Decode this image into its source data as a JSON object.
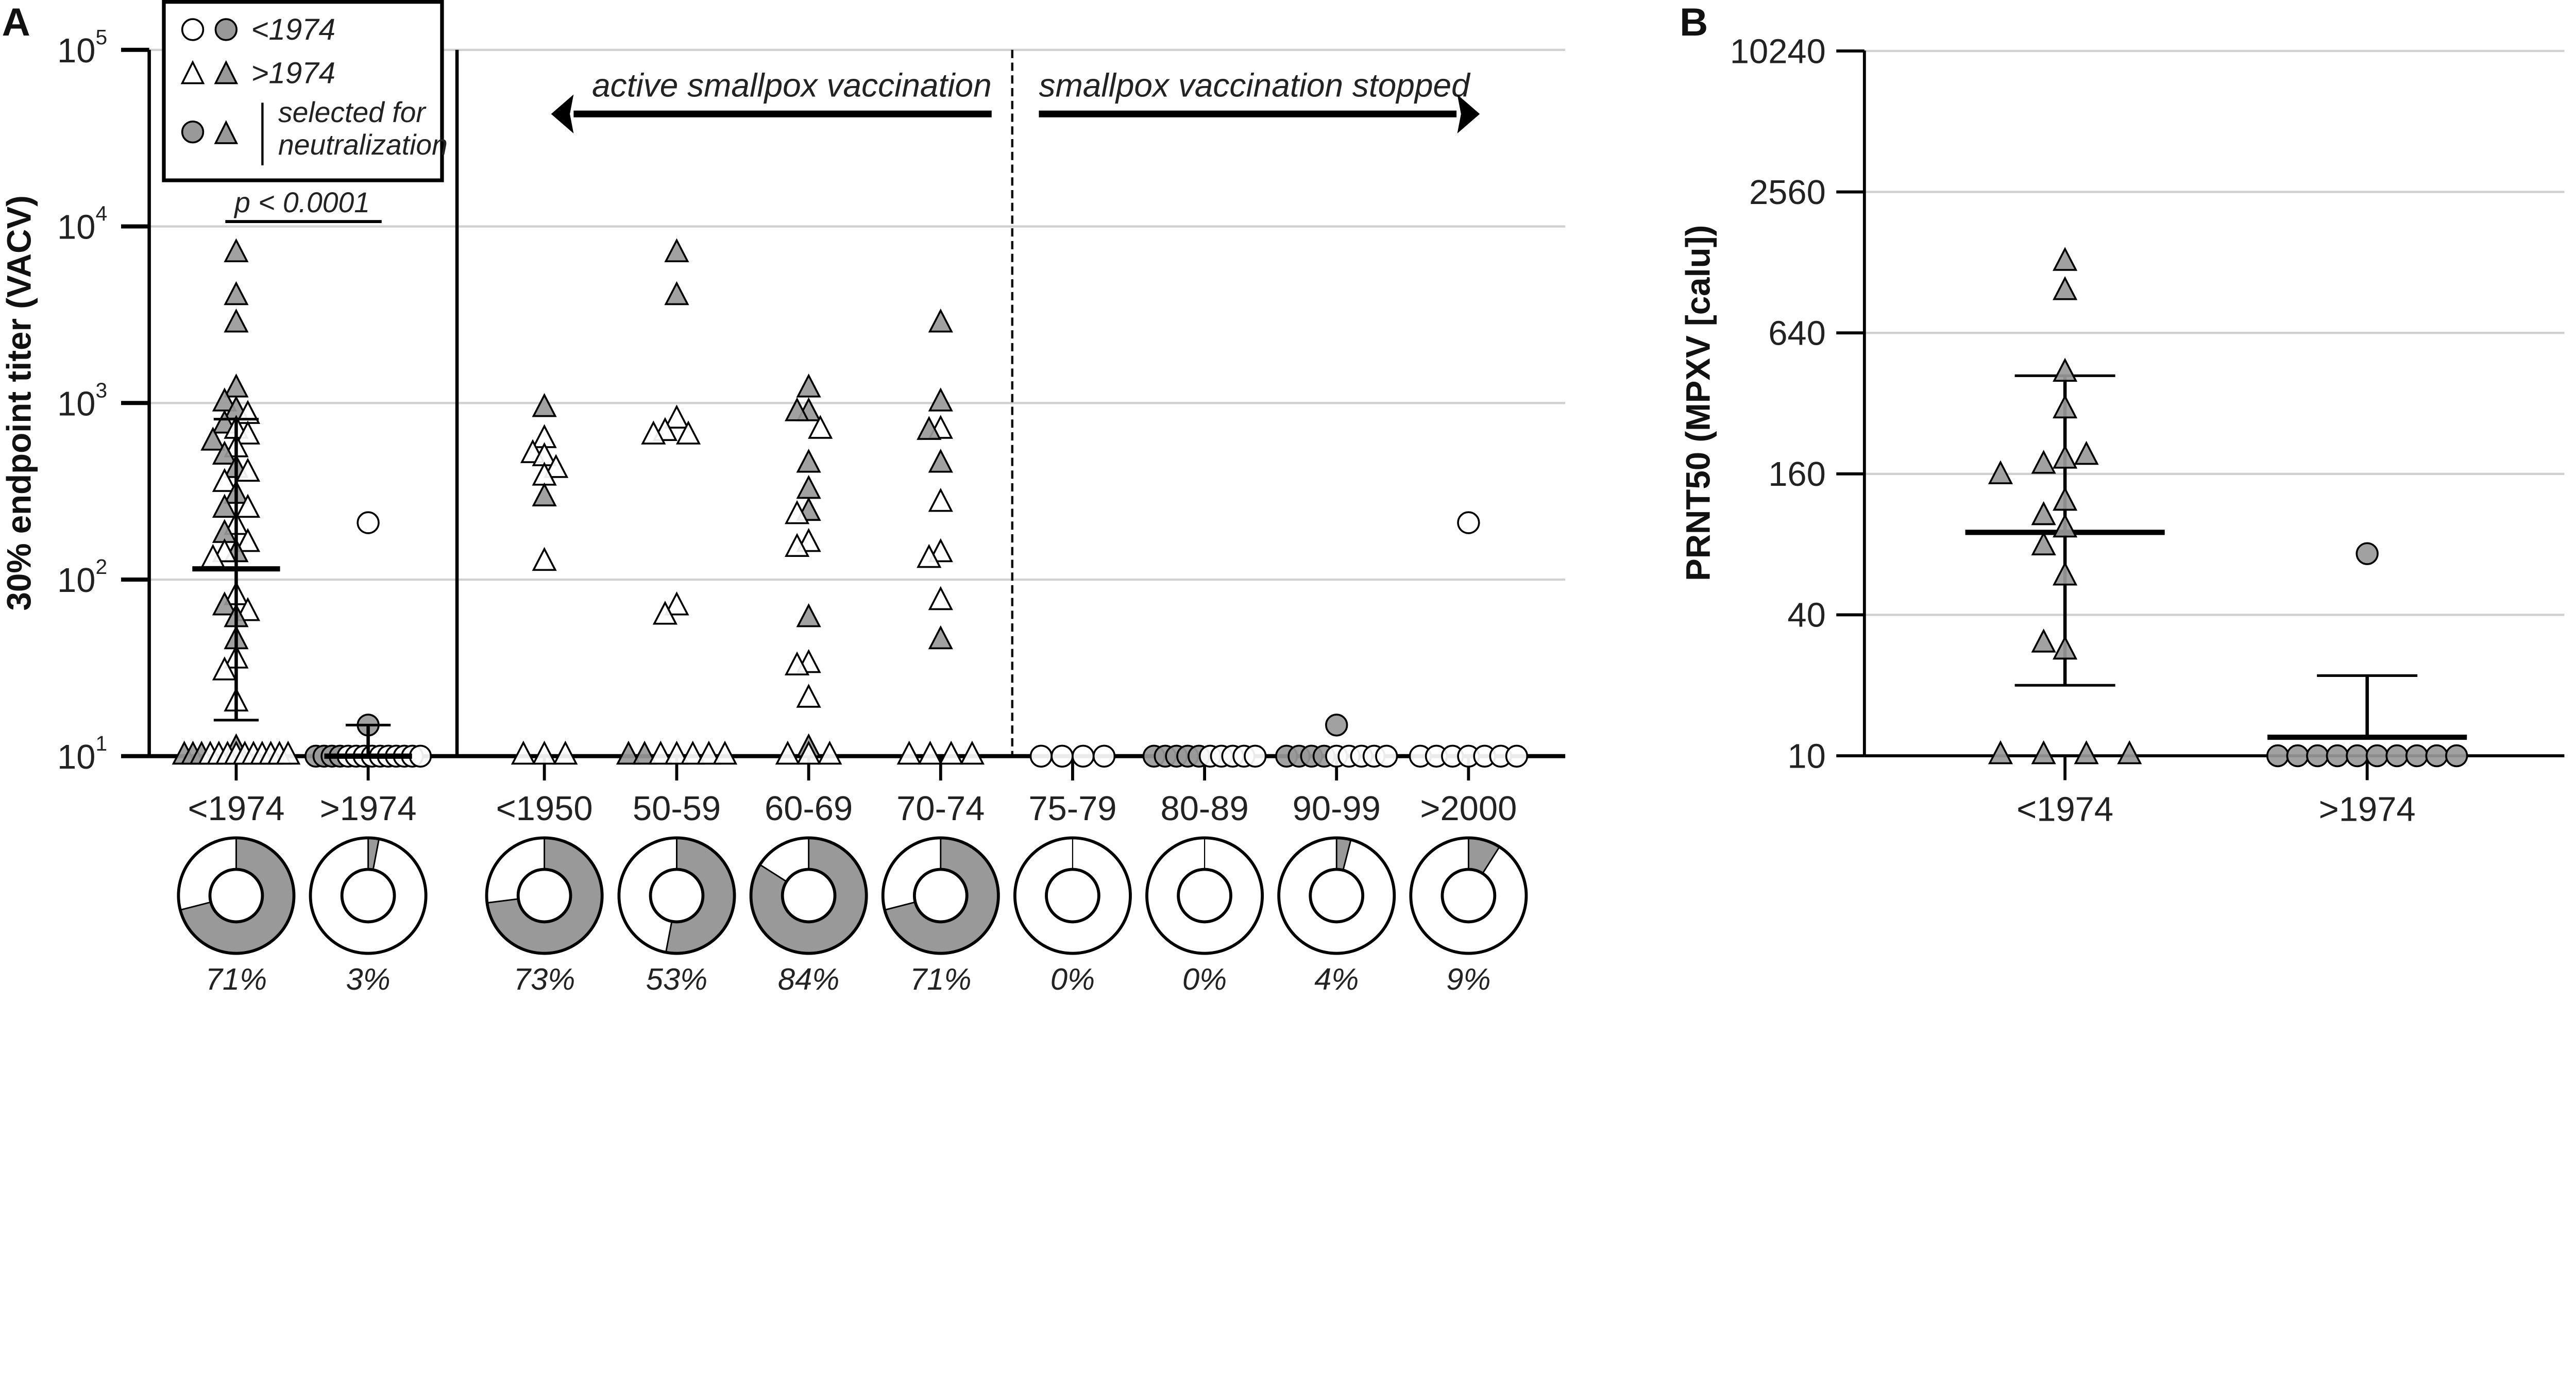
{
  "colors": {
    "filled": "#999999",
    "open": "#ffffff",
    "stroke": "#000000",
    "grid": "#d0d0d0"
  },
  "panel_a": {
    "letter": "A",
    "legend": {
      "row1_label": "<1974",
      "row2_label": ">1974",
      "row3_label_line1": "selected for",
      "row3_label_line2": "neutralization"
    },
    "pvalue": "p < 0.0001",
    "annotation_left": "active smallpox vaccination",
    "annotation_right": "smallpox vaccination stopped"
  },
  "panel_b": {
    "letter": "B"
  },
  "chart_data": [
    {
      "type": "scatter",
      "title": "",
      "ylabel": "30% endpoint titer (VACV)",
      "yscale": "log10",
      "ylim": [
        10,
        100000
      ],
      "yticks": [
        {
          "base": "10",
          "exp": "1"
        },
        {
          "base": "10",
          "exp": "2"
        },
        {
          "base": "10",
          "exp": "3"
        },
        {
          "base": "10",
          "exp": "4"
        },
        {
          "base": "10",
          "exp": "5"
        }
      ],
      "grid": true,
      "legend_position": "top-left",
      "groups": [
        {
          "label": "<1974",
          "shape": "triangle",
          "percent_label": "71%",
          "percent": 71,
          "filled": [
            7000,
            4000,
            2800,
            1200,
            1000,
            900,
            750,
            600,
            500,
            420,
            300,
            250,
            180,
            140,
            70,
            60,
            45,
            11,
            10,
            10,
            10
          ],
          "open": [
            850,
            700,
            650,
            550,
            400,
            350,
            250,
            200,
            160,
            140,
            130,
            80,
            65,
            35,
            30,
            20,
            10,
            10,
            10,
            10,
            10,
            10,
            10,
            10,
            10,
            10
          ],
          "mean": 115,
          "sd_low": 16,
          "sd_high": 810
        },
        {
          "label": ">1974",
          "shape": "circle",
          "percent_label": "3%",
          "percent": 3,
          "filled": [
            15,
            10,
            10,
            10,
            10
          ],
          "open": [
            210,
            10,
            10,
            10,
            10,
            10,
            10,
            10,
            10,
            10,
            10
          ],
          "mean": 10,
          "sd_high": 15
        },
        {
          "label": "<1950",
          "shape": "triangle",
          "percent_label": "73%",
          "percent": 73,
          "filled": [
            930,
            290
          ],
          "open": [
            620,
            510,
            490,
            420,
            380,
            125,
            10,
            10,
            10
          ]
        },
        {
          "label": "50-59",
          "shape": "triangle",
          "percent_label": "53%",
          "percent": 53,
          "filled": [
            7000,
            4000,
            10,
            10
          ],
          "open": [
            800,
            680,
            650,
            650,
            70,
            62,
            10,
            10,
            10,
            10,
            10
          ]
        },
        {
          "label": "60-69",
          "shape": "triangle",
          "percent_label": "84%",
          "percent": 84,
          "filled": [
            1200,
            880,
            880,
            450,
            320,
            240,
            60,
            11
          ],
          "open": [
            700,
            230,
            160,
            150,
            33,
            32,
            21,
            10,
            10,
            10
          ]
        },
        {
          "label": "70-74",
          "shape": "triangle",
          "percent_label": "71%",
          "percent": 71,
          "filled": [
            2800,
            1000,
            690,
            450,
            45
          ],
          "open": [
            700,
            270,
            140,
            130,
            75,
            10,
            10,
            10,
            10
          ]
        },
        {
          "label": "75-79",
          "shape": "circle",
          "percent_label": "0%",
          "percent": 0,
          "filled": [],
          "open": [
            10,
            10,
            10,
            10
          ]
        },
        {
          "label": "80-89",
          "shape": "circle",
          "percent_label": "0%",
          "percent": 0,
          "filled": [
            10,
            10,
            10,
            10,
            10
          ],
          "open": [
            10,
            10,
            10,
            10,
            10
          ]
        },
        {
          "label": "90-99",
          "shape": "circle",
          "percent_label": "4%",
          "percent": 4,
          "filled": [
            15,
            10,
            10,
            10,
            10
          ],
          "open": [
            10,
            10,
            10,
            10,
            10
          ]
        },
        {
          "label": ">2000",
          "shape": "circle",
          "percent_label": "9%",
          "percent": 9,
          "filled": [],
          "open": [
            210,
            10,
            10,
            10,
            10,
            10,
            10,
            10
          ]
        }
      ]
    },
    {
      "type": "scatter",
      "title": "",
      "ylabel": "PRNT50 (MPXV [calu])",
      "yscale": "log2",
      "ylim": [
        10,
        10240
      ],
      "yticks": [
        "10",
        "40",
        "160",
        "640",
        "2560",
        "10240"
      ],
      "grid": true,
      "groups": [
        {
          "label": "<1974",
          "shape": "triangle",
          "filled": [
            1280,
            960,
            430,
            300,
            183,
            174,
            190,
            157,
            121,
            105,
            93,
            78,
            58,
            28,
            30,
            10,
            10,
            10,
            10
          ],
          "mean": 90,
          "sd_low": 20,
          "sd_high": 420
        },
        {
          "label": ">1974",
          "shape": "circle",
          "filled": [
            73,
            10,
            10,
            10,
            10,
            10,
            10,
            10,
            10,
            10,
            10
          ],
          "mean": 12,
          "sd_high": 22
        }
      ]
    }
  ]
}
